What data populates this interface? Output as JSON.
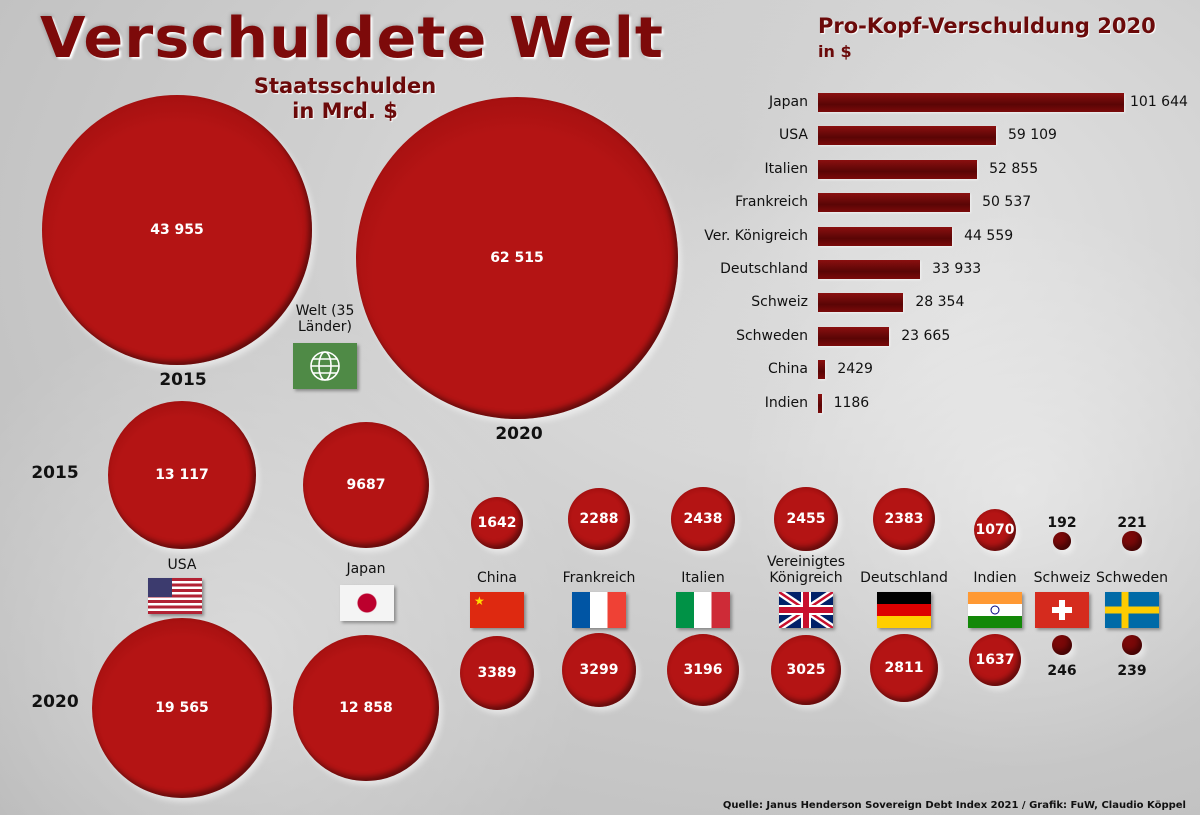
{
  "title": "Verschuldete Welt",
  "subtitle_line1": "Staatsschulden",
  "subtitle_line2": "in Mrd. $",
  "source": "Quelle: Janus Henderson Sovereign Debt Index 2021 / Grafik: FuW, Claudio Köppel",
  "colors": {
    "bubble": "#b41414",
    "bar": "#6e0808",
    "title": "#7d0a0a",
    "welt_flag": "#4f8a46"
  },
  "chart_data": [
    {
      "type": "bubble",
      "title": "Staatsschulden in Mrd. $",
      "entity": "Welt (35 Länder)",
      "flag_icon": "globe-icon",
      "categories": [
        "2015",
        "2020"
      ],
      "values": [
        43955,
        62515
      ],
      "labels": [
        "43 955",
        "62 515"
      ]
    },
    {
      "type": "bubble",
      "year_labels": [
        "2015",
        "2020"
      ],
      "countries": [
        {
          "name": "USA",
          "flag": "us",
          "v2015": 13117,
          "v2020": 19565,
          "l2015": "13 117",
          "l2020": "19 565"
        },
        {
          "name": "Japan",
          "flag": "jp",
          "v2015": 9687,
          "v2020": 12858,
          "l2015": "9687",
          "l2020": "12 858"
        },
        {
          "name": "China",
          "flag": "cn",
          "v2015": 1642,
          "v2020": 3389,
          "l2015": "1642",
          "l2020": "3389"
        },
        {
          "name": "Frankreich",
          "flag": "fr",
          "v2015": 2288,
          "v2020": 3299,
          "l2015": "2288",
          "l2020": "3299"
        },
        {
          "name": "Italien",
          "flag": "it",
          "v2015": 2438,
          "v2020": 3196,
          "l2015": "2438",
          "l2020": "3196"
        },
        {
          "name": "Vereinigtes Königreich",
          "flag": "gb",
          "v2015": 2455,
          "v2020": 3025,
          "l2015": "2455",
          "l2020": "3025"
        },
        {
          "name": "Deutschland",
          "flag": "de",
          "v2015": 2383,
          "v2020": 2811,
          "l2015": "2383",
          "l2020": "2811"
        },
        {
          "name": "Indien",
          "flag": "in",
          "v2015": 1070,
          "v2020": 1637,
          "l2015": "1070",
          "l2020": "1637"
        },
        {
          "name": "Schweiz",
          "flag": "ch",
          "v2015": 192,
          "v2020": 246,
          "l2015": "192",
          "l2020": "246"
        },
        {
          "name": "Schweden",
          "flag": "se",
          "v2015": 221,
          "v2020": 239,
          "l2015": "221",
          "l2020": "239"
        }
      ]
    },
    {
      "type": "bar",
      "orientation": "horizontal",
      "title": "Pro-Kopf-Verschuldung 2020",
      "unit": "in $",
      "categories": [
        "Japan",
        "USA",
        "Italien",
        "Frankreich",
        "Ver. Königreich",
        "Deutschland",
        "Schweiz",
        "Schweden",
        "China",
        "Indien"
      ],
      "values": [
        101644,
        59109,
        52855,
        50537,
        44559,
        33933,
        28354,
        23665,
        2429,
        1186
      ],
      "labels": [
        "101 644",
        "59 109",
        "52 855",
        "50 537",
        "44 559",
        "33 933",
        "28 354",
        "23 665",
        "2429",
        "1186"
      ]
    }
  ]
}
